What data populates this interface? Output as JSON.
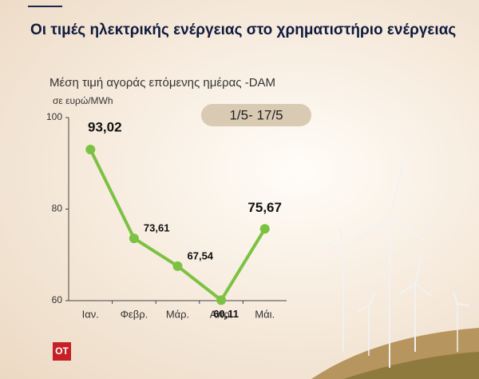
{
  "title": "Οι τιμές ηλεκτρικής ενέργειας στο χρηματιστήριο ενέργειας",
  "logo": "OT",
  "chart_data": {
    "type": "line",
    "subtitle": "Μέση τιμή αγοράς επόμενης ημέρας -DAM",
    "unit_label": "σε ευρώ/MWh",
    "annotation": "1/5- 17/5",
    "categories": [
      "Ιαν.",
      "Φεβρ.",
      "Μάρ.",
      "Απρ.",
      "Μάι."
    ],
    "values": [
      93.02,
      73.61,
      67.54,
      60.11,
      75.67
    ],
    "value_labels": [
      "93,02",
      "73,61",
      "67,54",
      "60,11",
      "75,67"
    ],
    "color": "#7cc242",
    "ylim": [
      60,
      100
    ],
    "yticks": [
      60,
      80,
      100
    ]
  }
}
